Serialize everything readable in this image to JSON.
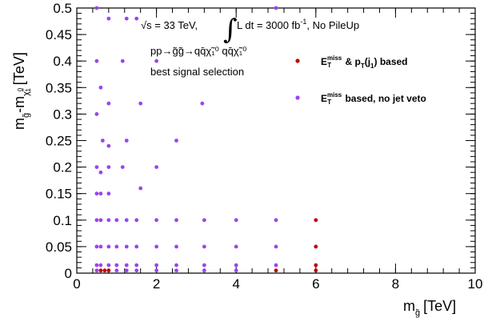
{
  "chart_data": {
    "type": "scatter",
    "xlabel": "m",
    "xlabel_sub": "g̃",
    "xlabel_unit": "[TeV]",
    "ylabel": "m",
    "ylabel_sub1": "g̃",
    "ylabel_mid": "-m",
    "ylabel_sub2": "χ̃",
    "ylabel_sub2_sup": "0",
    "ylabel_sub2_sub": "1",
    "ylabel_unit": "[TeV]",
    "xlim": [
      0,
      10
    ],
    "ylim": [
      0,
      0.5
    ],
    "x_ticks": [
      "0",
      "2",
      "4",
      "6",
      "8",
      "10"
    ],
    "y_ticks": [
      "0",
      "0.05",
      "0.1",
      "0.15",
      "0.2",
      "0.25",
      "0.3",
      "0.35",
      "0.4",
      "0.45",
      "0.5"
    ],
    "annotations": {
      "line1_a": "√s = 33 TeV,",
      "line1_b": "L dt = 3000 fb",
      "line1_sup": "-1",
      "line1_c": ", No PileUp",
      "line2": "pp→g̃g̃→qq̄χ̃₁⁰ qq̄χ̃₁⁰",
      "line3": "best signal selection"
    },
    "legend_position": "top-right",
    "series": [
      {
        "name": "E_T^miss & p_T(j_1) based",
        "color": "#c00000",
        "points": [
          [
            0.6,
            0.005
          ],
          [
            0.8,
            0.005
          ],
          [
            0.7,
            0.005
          ],
          [
            5.0,
            0.005
          ],
          [
            6.0,
            0.005
          ],
          [
            6.0,
            0.015
          ],
          [
            6.0,
            0.05
          ],
          [
            6.0,
            0.1
          ]
        ]
      },
      {
        "name": "E_T^miss based, no jet veto",
        "color": "#9a44ee",
        "points": [
          [
            0.5,
            0.5
          ],
          [
            0.8,
            0.48
          ],
          [
            1.25,
            0.48
          ],
          [
            1.5,
            0.48
          ],
          [
            5.0,
            0.5
          ],
          [
            0.5,
            0.4
          ],
          [
            0.6,
            0.35
          ],
          [
            1.15,
            0.4
          ],
          [
            2.0,
            0.4
          ],
          [
            0.5,
            0.3
          ],
          [
            0.8,
            0.32
          ],
          [
            0.65,
            0.25
          ],
          [
            0.8,
            0.24
          ],
          [
            1.25,
            0.25
          ],
          [
            1.6,
            0.32
          ],
          [
            3.15,
            0.32
          ],
          [
            0.5,
            0.2
          ],
          [
            0.6,
            0.19
          ],
          [
            0.8,
            0.2
          ],
          [
            1.15,
            0.2
          ],
          [
            2.0,
            0.2
          ],
          [
            2.5,
            0.25
          ],
          [
            0.5,
            0.15
          ],
          [
            0.6,
            0.15
          ],
          [
            0.8,
            0.15
          ],
          [
            1.6,
            0.16
          ],
          [
            0.5,
            0.1
          ],
          [
            0.6,
            0.1
          ],
          [
            0.8,
            0.1
          ],
          [
            1.0,
            0.1
          ],
          [
            1.25,
            0.1
          ],
          [
            1.5,
            0.1
          ],
          [
            2.0,
            0.1
          ],
          [
            2.5,
            0.1
          ],
          [
            3.2,
            0.1
          ],
          [
            4.0,
            0.1
          ],
          [
            5.0,
            0.1
          ],
          [
            0.5,
            0.05
          ],
          [
            0.6,
            0.05
          ],
          [
            0.8,
            0.05
          ],
          [
            1.0,
            0.05
          ],
          [
            1.25,
            0.05
          ],
          [
            1.5,
            0.05
          ],
          [
            2.0,
            0.05
          ],
          [
            2.5,
            0.05
          ],
          [
            3.2,
            0.05
          ],
          [
            4.0,
            0.05
          ],
          [
            5.0,
            0.05
          ],
          [
            0.5,
            0.015
          ],
          [
            0.6,
            0.015
          ],
          [
            0.8,
            0.015
          ],
          [
            1.0,
            0.015
          ],
          [
            1.25,
            0.015
          ],
          [
            1.5,
            0.015
          ],
          [
            2.0,
            0.015
          ],
          [
            2.5,
            0.015
          ],
          [
            3.2,
            0.015
          ],
          [
            4.0,
            0.015
          ],
          [
            5.0,
            0.015
          ],
          [
            0.5,
            0.005
          ],
          [
            1.0,
            0.005
          ],
          [
            1.25,
            0.005
          ],
          [
            1.5,
            0.005
          ],
          [
            2.0,
            0.005
          ],
          [
            2.5,
            0.005
          ],
          [
            3.2,
            0.005
          ],
          [
            4.0,
            0.005
          ]
        ]
      }
    ]
  }
}
